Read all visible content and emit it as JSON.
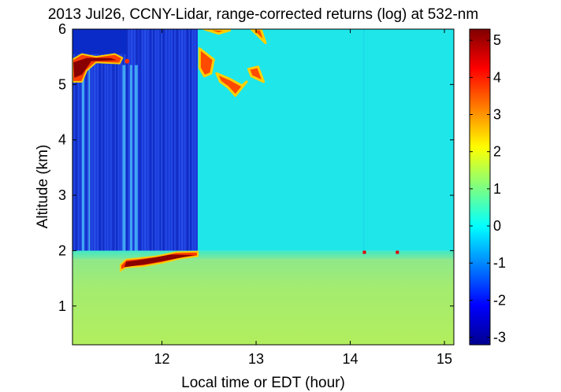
{
  "chart_data": {
    "type": "heatmap",
    "title": "2013 Jul26, CCNY-Lidar, range-corrected returns (log) at 532-nm",
    "xlabel": "Local time or EDT (hour)",
    "ylabel": "Altitude (km)",
    "xlim": [
      11.05,
      15.1
    ],
    "ylim": [
      0.3,
      6.0
    ],
    "xticks": [
      "12",
      "13",
      "14",
      "15"
    ],
    "yticks": [
      "1",
      "2",
      "3",
      "4",
      "5",
      "6"
    ],
    "colorbar": {
      "min": -3.2,
      "max": 5.3,
      "ticks": [
        "-3",
        "-2",
        "-1",
        "0",
        "1",
        "2",
        "3",
        "4",
        "5"
      ],
      "colormap": "jet"
    },
    "features": [
      {
        "type": "boundary_layer",
        "x": [
          11.05,
          15.1
        ],
        "y": [
          0.3,
          1.85
        ],
        "value": 1.2
      },
      {
        "type": "residual_layer",
        "x": [
          11.05,
          15.1
        ],
        "y": [
          1.85,
          2.0
        ],
        "value": 0.9
      },
      {
        "type": "free_troposphere",
        "x": [
          11.05,
          15.1
        ],
        "y": [
          2.0,
          6.0
        ],
        "value": 0.2
      },
      {
        "type": "attenuated_region",
        "x": [
          11.05,
          12.38
        ],
        "y": [
          2.0,
          6.0
        ],
        "value": -2.6
      },
      {
        "type": "low_cloud",
        "x": [
          11.55,
          12.38
        ],
        "y": [
          1.6,
          2.0
        ],
        "value": 5.0
      },
      {
        "type": "high_cloud",
        "x": [
          11.05,
          11.6
        ],
        "y": [
          5.0,
          5.6
        ],
        "value": 4.6
      },
      {
        "type": "high_cloud",
        "x": [
          12.4,
          13.1
        ],
        "y": [
          4.8,
          6.0
        ],
        "value": 3.8
      },
      {
        "type": "point_return",
        "x": [
          14.15,
          14.5
        ],
        "y": [
          1.97,
          1.97
        ],
        "value": 4.5
      }
    ]
  }
}
